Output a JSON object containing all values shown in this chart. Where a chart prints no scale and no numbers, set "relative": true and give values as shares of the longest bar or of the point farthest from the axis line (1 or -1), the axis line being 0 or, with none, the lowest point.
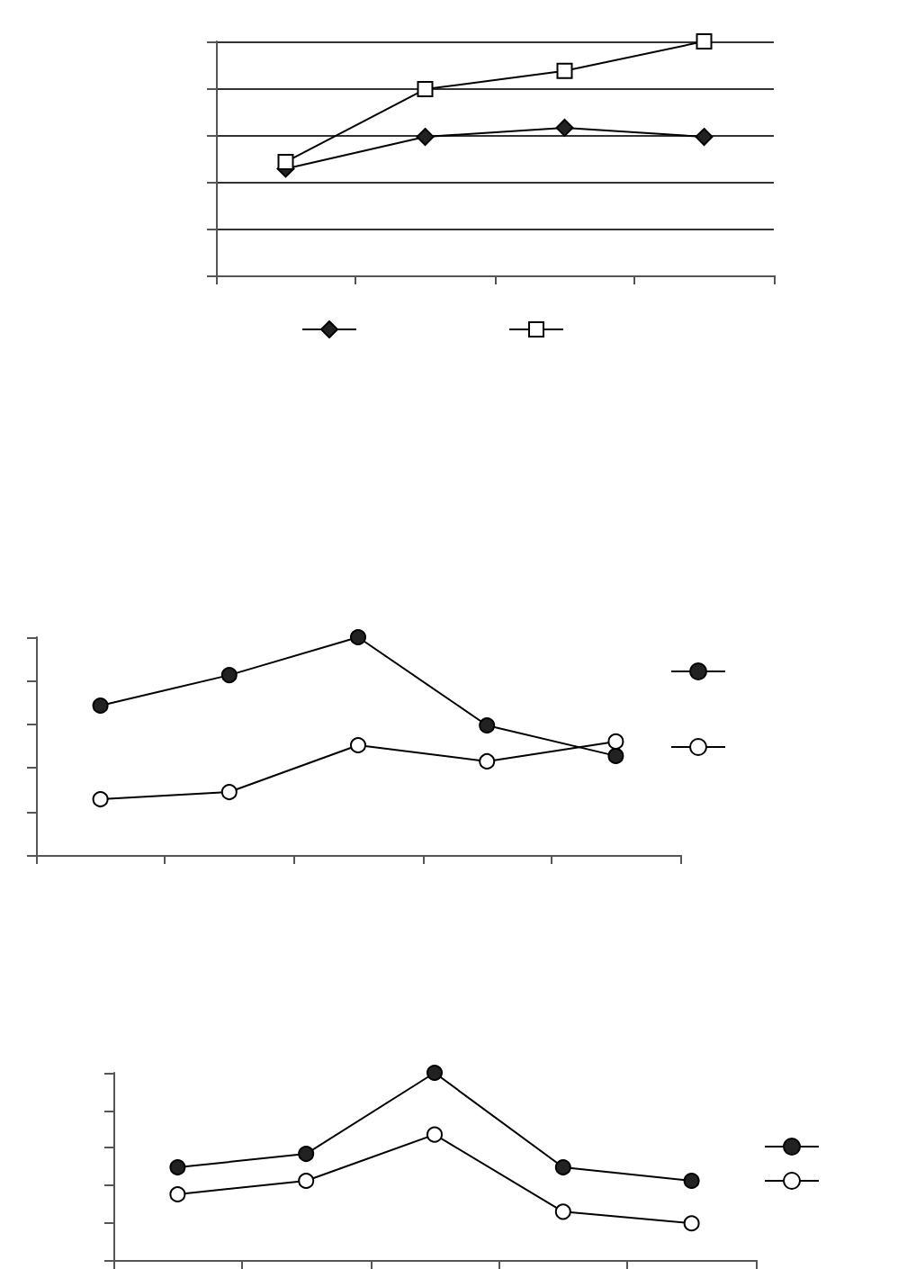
{
  "chart_data": [
    {
      "type": "line",
      "relative": true,
      "categories": [
        null,
        null,
        null,
        null
      ],
      "grid": "y",
      "series": [
        {
          "color": "#000000",
          "marker": "diamond",
          "values": [
            0.456,
            0.592,
            0.631,
            0.592
          ]
        },
        {
          "color": "#000000",
          "marker": "square",
          "values": [
            0.485,
            0.796,
            0.874,
            1
          ]
        }
      ]
    },
    {
      "type": "line",
      "relative": true,
      "categories": [
        null,
        null,
        null,
        null,
        null
      ],
      "grid": false,
      "series": [
        {
          "color": "#000000",
          "marker": "circle",
          "values": [
            0.686,
            0.826,
            1,
            0.595,
            0.455
          ]
        },
        {
          "color": "#000000",
          "marker": "circle",
          "values": [
            0.256,
            0.289,
            0.504,
            0.43,
            0.521
          ]
        }
      ]
    },
    {
      "type": "line",
      "relative": true,
      "categories": [
        null,
        null,
        null,
        null,
        null
      ],
      "grid": false,
      "series": [
        {
          "color": "#000000",
          "marker": "circle",
          "values": [
            0.495,
            0.567,
            1,
            0.495,
            0.423
          ]
        },
        {
          "color": "#000000",
          "marker": "circle",
          "values": [
            0.351,
            0.423,
            0.67,
            0.258,
            0.196
          ]
        }
      ]
    }
  ]
}
